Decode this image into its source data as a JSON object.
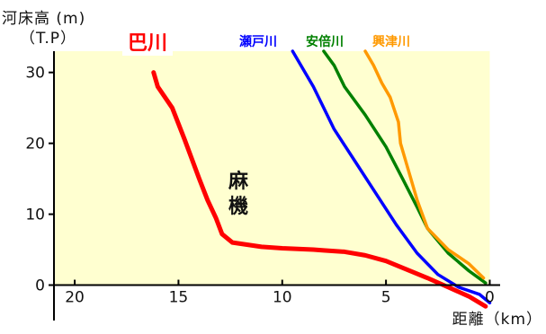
{
  "y_axis_label": "河床高 (m)",
  "y_axis_label2": "（T.P）",
  "x_axis_label": "距離（km）",
  "annotation": [
    "麻",
    "機"
  ],
  "colors": {
    "background_fill": "#ffffd0",
    "axis": "#000000"
  },
  "chart_data": {
    "type": "line",
    "xlim": [
      21,
      -0.5
    ],
    "ylim": [
      -5,
      33
    ],
    "xticks": [
      20,
      15,
      10,
      5,
      0
    ],
    "yticks": [
      0,
      10,
      20,
      30
    ],
    "grid": false,
    "series": [
      {
        "name": "巴川",
        "color": "#ff0000",
        "x": [
          16.2,
          16,
          15.3,
          14.7,
          14,
          13.6,
          13.2,
          12.9,
          12.4,
          11,
          10,
          8.5,
          8,
          7,
          6,
          5,
          4,
          3,
          2,
          1,
          0.2
        ],
        "y": [
          30,
          28,
          25,
          20.5,
          15,
          12,
          9.5,
          7.2,
          6,
          5.4,
          5.2,
          5,
          4.9,
          4.7,
          4.2,
          3.4,
          2.2,
          1,
          -0.3,
          -1.6,
          -3
        ]
      },
      {
        "name": "瀬戸川",
        "color": "#0000ff",
        "x": [
          9.5,
          8.5,
          7.5,
          6.5,
          5.5,
          4.5,
          3.5,
          2.5,
          1.5,
          0.5,
          0
        ],
        "y": [
          33,
          28,
          22,
          17.5,
          13,
          8.5,
          4.5,
          1.5,
          -0.3,
          -1.3,
          -2.5
        ]
      },
      {
        "name": "安倍川",
        "color": "#008000",
        "x": [
          8,
          7.5,
          7,
          6,
          5,
          4.2,
          3.5,
          3,
          2,
          1,
          0.2
        ],
        "y": [
          33,
          31,
          28,
          24,
          19.5,
          15,
          11,
          8,
          4.5,
          2,
          0.3
        ]
      },
      {
        "name": "興津川",
        "color": "#ff9900",
        "x": [
          6,
          5.6,
          5.2,
          4.8,
          4.4,
          4.3,
          4,
          3.5,
          3,
          2.5,
          2,
          1,
          0.3
        ],
        "y": [
          33,
          31,
          28.5,
          26.5,
          23,
          20,
          17,
          12,
          8,
          6.5,
          5,
          3,
          1
        ]
      }
    ]
  }
}
